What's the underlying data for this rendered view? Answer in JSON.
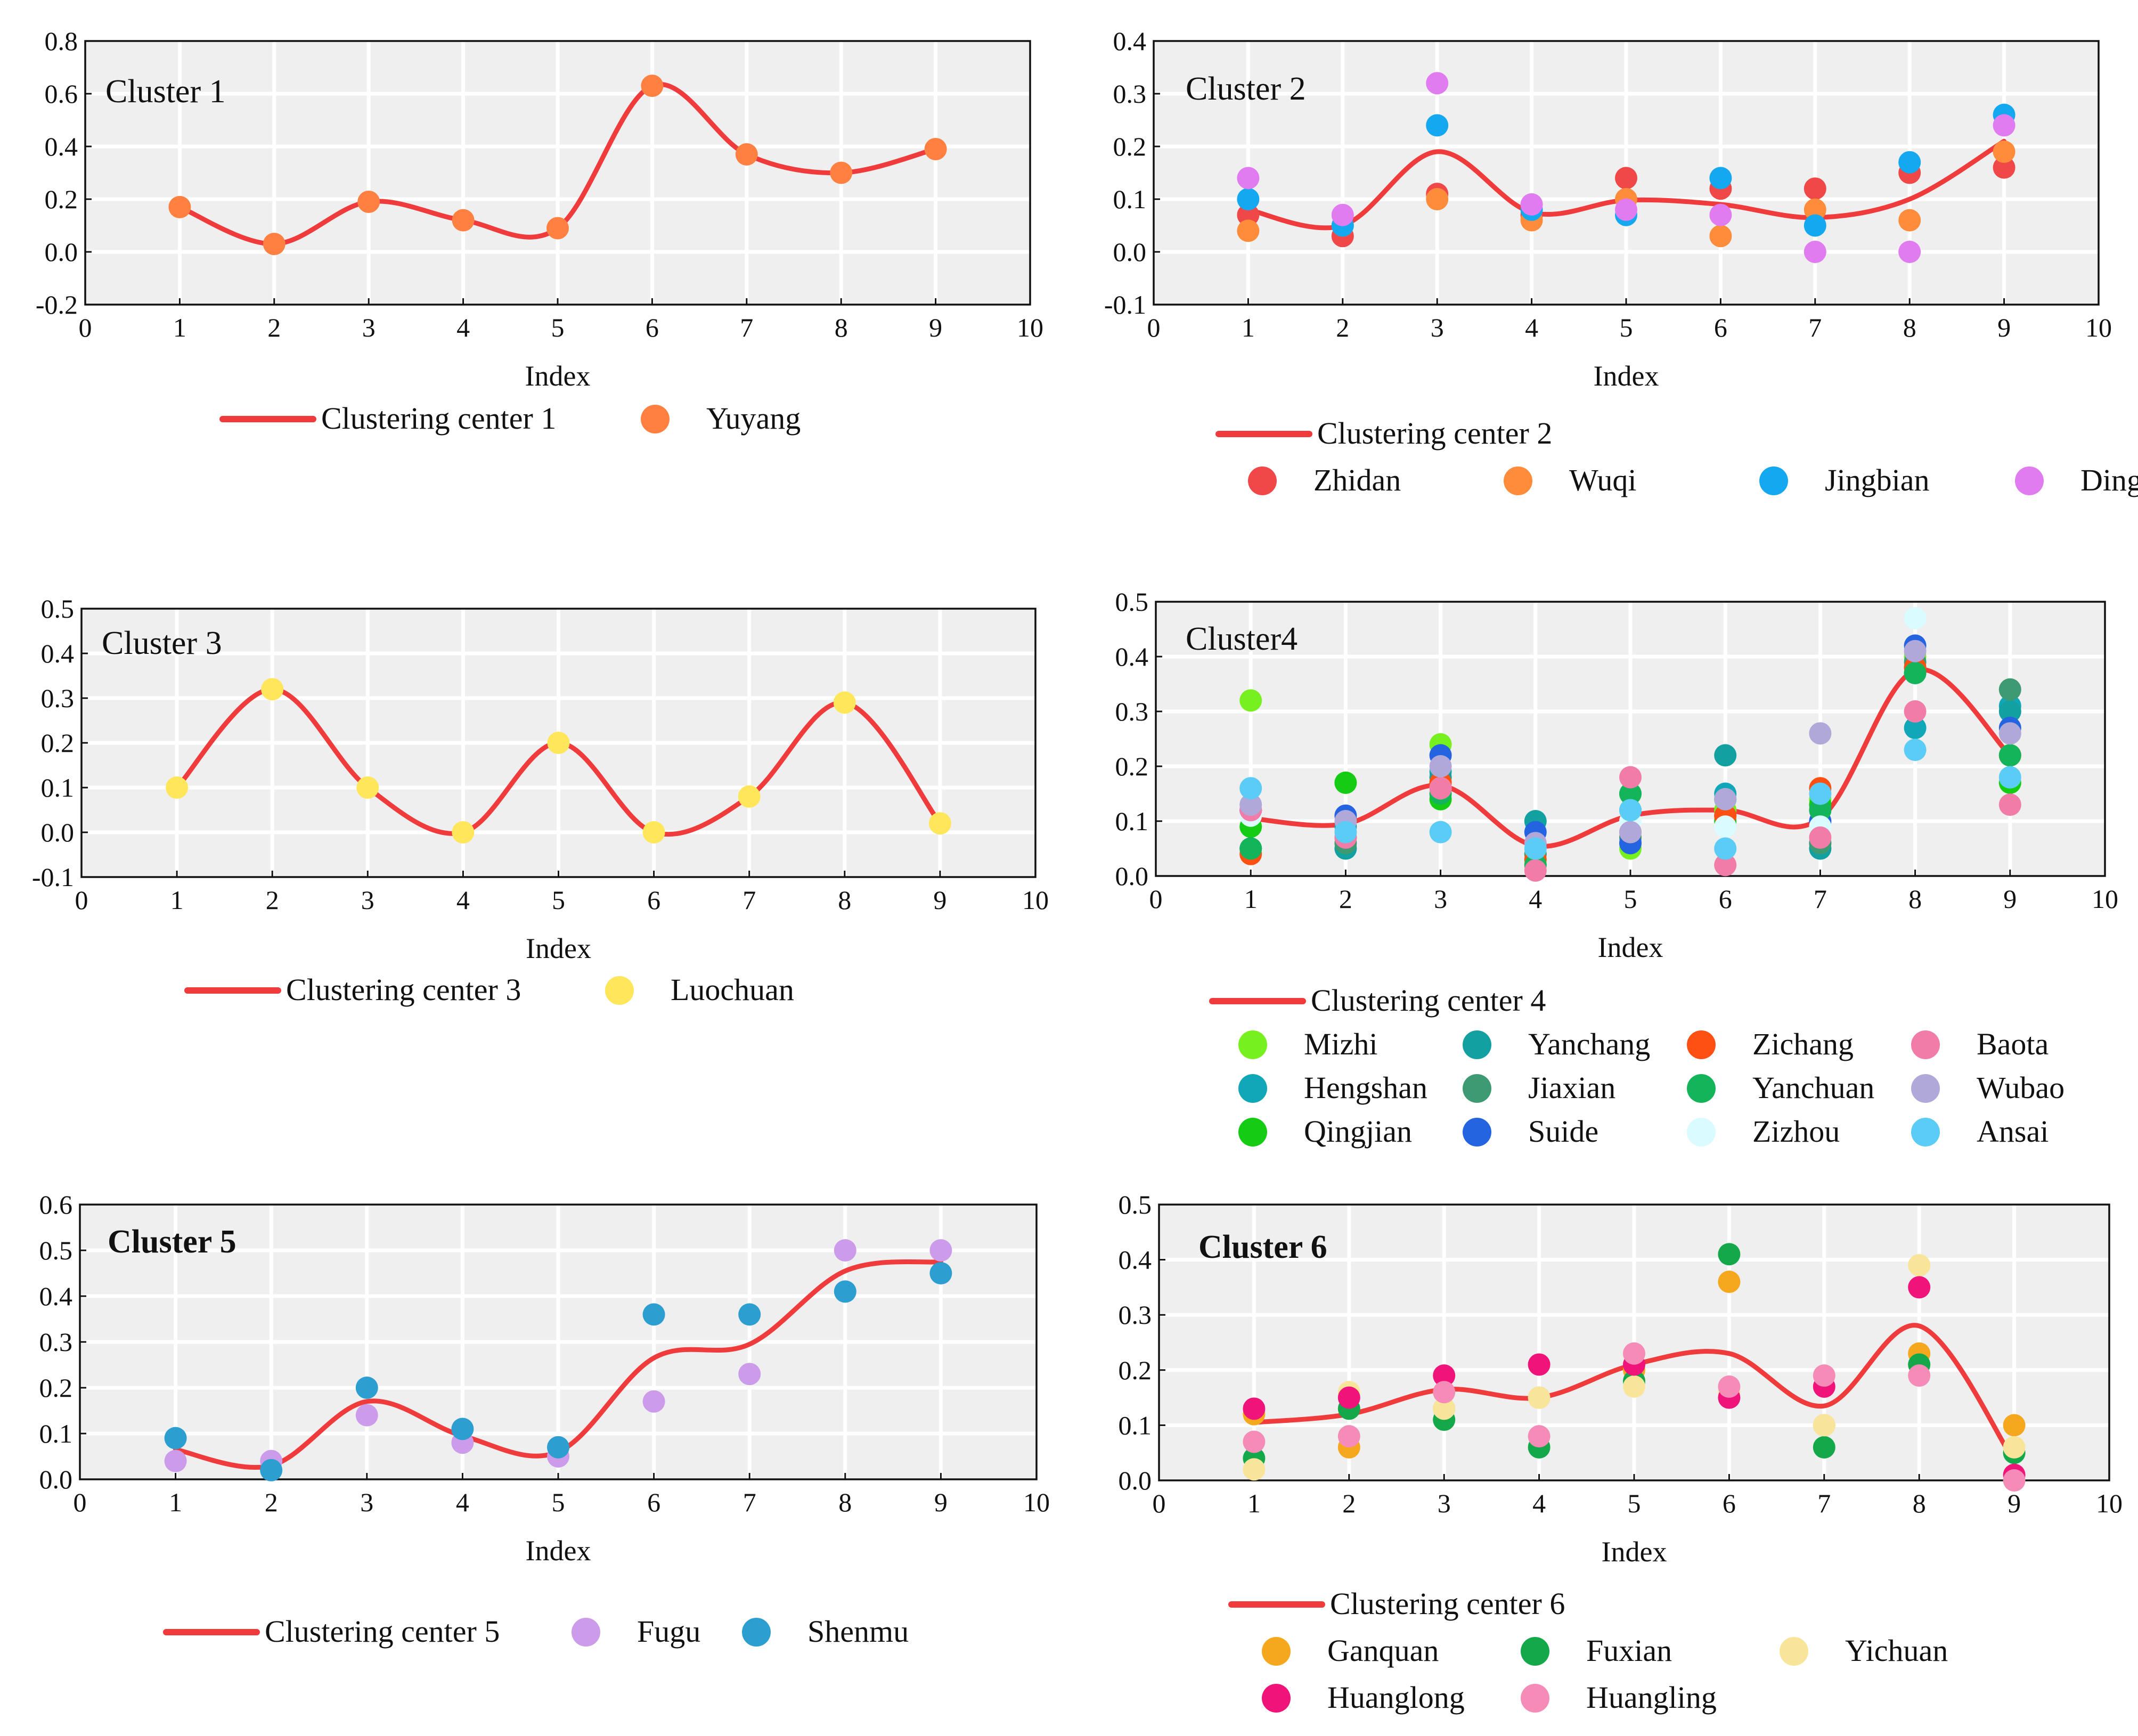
{
  "colors": {
    "center_line": "#EF3B3B",
    "plot_background": "#EFEFEF",
    "grid": "#FFFFFF",
    "axis": "#111111"
  },
  "chart_data": [
    {
      "type": "line",
      "title": "Cluster 1",
      "title_bold": false,
      "xlabel": "Index",
      "ylabel": "",
      "xlim": [
        0,
        10
      ],
      "ylim": [
        -0.2,
        0.8
      ],
      "xticks": [
        0,
        1,
        2,
        3,
        4,
        5,
        6,
        7,
        8,
        9,
        10
      ],
      "yticks": [
        "-0.2",
        "0.0",
        "0.2",
        "0.4",
        "0.6",
        "0.8"
      ],
      "center": {
        "name": "Clustering center 1",
        "x": [
          1,
          2,
          3,
          4,
          5,
          6,
          7,
          8,
          9
        ],
        "values": [
          0.17,
          0.03,
          0.19,
          0.12,
          0.09,
          0.63,
          0.37,
          0.3,
          0.39
        ]
      },
      "legend_columns": 2,
      "series": [
        {
          "name": "Yuyang",
          "color": "#FF8040",
          "values": [
            0.17,
            0.03,
            0.19,
            0.12,
            0.09,
            0.63,
            0.37,
            0.3,
            0.39
          ]
        }
      ]
    },
    {
      "type": "scatter",
      "title": "Cluster 2",
      "title_bold": false,
      "xlabel": "Index",
      "ylabel": "",
      "xlim": [
        0,
        10
      ],
      "ylim": [
        -0.1,
        0.4
      ],
      "xticks": [
        0,
        1,
        2,
        3,
        4,
        5,
        6,
        7,
        8,
        9,
        10
      ],
      "yticks": [
        "-0.1",
        "0.0",
        "0.1",
        "0.2",
        "0.3",
        "0.4"
      ],
      "center": {
        "name": "Clustering center 2",
        "x": [
          1,
          2,
          3,
          4,
          5,
          6,
          7,
          8,
          9
        ],
        "values": [
          0.08,
          0.05,
          0.19,
          0.075,
          0.098,
          0.09,
          0.065,
          0.1,
          0.21
        ]
      },
      "legend_columns": 4,
      "series": [
        {
          "name": "Zhidan",
          "color": "#F04848",
          "values": [
            0.07,
            0.03,
            0.11,
            0.07,
            0.14,
            0.12,
            0.12,
            0.15,
            0.16
          ]
        },
        {
          "name": "Wuqi",
          "color": "#FF8C3A",
          "values": [
            0.04,
            0.05,
            0.1,
            0.06,
            0.1,
            0.03,
            0.08,
            0.06,
            0.19
          ]
        },
        {
          "name": "Jingbian",
          "color": "#14A8F0",
          "values": [
            0.1,
            0.05,
            0.24,
            0.08,
            0.07,
            0.14,
            0.05,
            0.17,
            0.26
          ]
        },
        {
          "name": "Dingbian",
          "color": "#E07CF0",
          "values": [
            0.14,
            0.07,
            0.32,
            0.09,
            0.08,
            0.07,
            0.0,
            0.0,
            0.24
          ]
        }
      ]
    },
    {
      "type": "scatter",
      "title": "Cluster 3",
      "title_bold": false,
      "xlabel": "Index",
      "ylabel": "",
      "xlim": [
        0,
        10
      ],
      "ylim": [
        -0.1,
        0.5
      ],
      "xticks": [
        0,
        1,
        2,
        3,
        4,
        5,
        6,
        7,
        8,
        9,
        10
      ],
      "yticks": [
        "-0.1",
        "0.0",
        "0.1",
        "0.2",
        "0.3",
        "0.4",
        "0.5"
      ],
      "center": {
        "name": "Clustering center 3",
        "x": [
          1,
          2,
          3,
          4,
          5,
          6,
          7,
          8,
          9
        ],
        "values": [
          0.1,
          0.32,
          0.1,
          0.0,
          0.2,
          0.0,
          0.08,
          0.29,
          0.02
        ]
      },
      "legend_columns": 2,
      "series": [
        {
          "name": "Luochuan",
          "color": "#FFE65A",
          "values": [
            0.1,
            0.32,
            0.1,
            0.0,
            0.2,
            0.0,
            0.08,
            0.29,
            0.02
          ]
        }
      ]
    },
    {
      "type": "scatter",
      "title": "Cluster4",
      "title_bold": false,
      "xlabel": "Index",
      "ylabel": "",
      "xlim": [
        0,
        10
      ],
      "ylim": [
        0.0,
        0.5
      ],
      "xticks": [
        0,
        1,
        2,
        3,
        4,
        5,
        6,
        7,
        8,
        9,
        10
      ],
      "yticks": [
        "0.0",
        "0.1",
        "0.2",
        "0.3",
        "0.4",
        "0.5"
      ],
      "center": {
        "name": "Clustering center 4",
        "x": [
          1,
          2,
          3,
          4,
          5,
          6,
          7,
          8,
          9
        ],
        "values": [
          0.105,
          0.095,
          0.165,
          0.055,
          0.11,
          0.12,
          0.105,
          0.375,
          0.22
        ]
      },
      "legend_columns": 4,
      "series": [
        {
          "name": "Mizhi",
          "color": "#76F01E",
          "values": [
            0.32,
            0.17,
            0.24,
            0.03,
            0.05,
            0.12,
            0.14,
            0.4,
            0.22
          ]
        },
        {
          "name": "Hengshan",
          "color": "#10A8B8",
          "values": [
            0.12,
            0.09,
            0.19,
            0.04,
            0.12,
            0.15,
            0.06,
            0.27,
            0.31
          ]
        },
        {
          "name": "Qingjian",
          "color": "#14CC14",
          "values": [
            0.09,
            0.17,
            0.14,
            0.02,
            0.15,
            0.1,
            0.13,
            0.38,
            0.17
          ]
        },
        {
          "name": "Yanchang",
          "color": "#12A0A0",
          "values": [
            0.05,
            0.05,
            0.18,
            0.1,
            0.06,
            0.22,
            0.05,
            0.37,
            0.3
          ]
        },
        {
          "name": "Jiaxian",
          "color": "#3E9A72",
          "values": [
            0.05,
            0.06,
            0.17,
            0.04,
            0.07,
            0.14,
            0.06,
            0.39,
            0.34
          ]
        },
        {
          "name": "Suide",
          "color": "#2564E0",
          "values": [
            0.12,
            0.11,
            0.22,
            0.08,
            0.06,
            0.11,
            0.1,
            0.42,
            0.27
          ]
        },
        {
          "name": "Zichang",
          "color": "#FF5014",
          "values": [
            0.04,
            0.08,
            0.17,
            0.03,
            0.08,
            0.11,
            0.16,
            0.38,
            0.22
          ]
        },
        {
          "name": "Yanchuan",
          "color": "#14B45A",
          "values": [
            0.05,
            0.07,
            0.15,
            0.02,
            0.15,
            0.14,
            0.12,
            0.37,
            0.22
          ]
        },
        {
          "name": "Zizhou",
          "color": "#DAFBFF",
          "values": [
            0.11,
            0.08,
            0.16,
            0.05,
            0.1,
            0.09,
            0.09,
            0.47,
            0.18
          ]
        },
        {
          "name": "Baota",
          "color": "#F27CA8",
          "values": [
            0.12,
            0.07,
            0.16,
            0.01,
            0.18,
            0.02,
            0.07,
            0.3,
            0.13
          ]
        },
        {
          "name": "Wubao",
          "color": "#B0A8D8",
          "values": [
            0.13,
            0.1,
            0.2,
            0.06,
            0.08,
            0.14,
            0.26,
            0.41,
            0.26
          ]
        },
        {
          "name": "Ansai",
          "color": "#5ACCF5",
          "values": [
            0.16,
            0.08,
            0.08,
            0.05,
            0.12,
            0.05,
            0.15,
            0.23,
            0.18
          ]
        }
      ]
    },
    {
      "type": "scatter",
      "title": "Cluster 5",
      "title_bold": true,
      "xlabel": "Index",
      "ylabel": "",
      "xlim": [
        0,
        10
      ],
      "ylim": [
        0.0,
        0.6
      ],
      "xticks": [
        0,
        1,
        2,
        3,
        4,
        5,
        6,
        7,
        8,
        9,
        10
      ],
      "yticks": [
        "0.0",
        "0.1",
        "0.2",
        "0.3",
        "0.4",
        "0.5",
        "0.6"
      ],
      "center": {
        "name": "Clustering center 5",
        "x": [
          1,
          2,
          3,
          4,
          5,
          6,
          7,
          8,
          9
        ],
        "values": [
          0.065,
          0.03,
          0.17,
          0.095,
          0.06,
          0.265,
          0.295,
          0.455,
          0.475
        ]
      },
      "legend_columns": 3,
      "series": [
        {
          "name": "Fugu",
          "color": "#CC9CEA",
          "values": [
            0.04,
            0.04,
            0.14,
            0.08,
            0.05,
            0.17,
            0.23,
            0.5,
            0.5
          ]
        },
        {
          "name": "Shenmu",
          "color": "#2C9ED0",
          "values": [
            0.09,
            0.02,
            0.2,
            0.11,
            0.07,
            0.36,
            0.36,
            0.41,
            0.45
          ]
        }
      ]
    },
    {
      "type": "scatter",
      "title": "Cluster 6",
      "title_bold": true,
      "xlabel": "Index",
      "ylabel": "",
      "xlim": [
        0,
        10
      ],
      "ylim": [
        0.0,
        0.5
      ],
      "xticks": [
        0,
        1,
        2,
        3,
        4,
        5,
        6,
        7,
        8,
        9,
        10
      ],
      "yticks": [
        "0.0",
        "0.1",
        "0.2",
        "0.3",
        "0.4",
        "0.5"
      ],
      "center": {
        "name": "Clustering center 6",
        "x": [
          1,
          2,
          3,
          4,
          5,
          6,
          7,
          8,
          9
        ],
        "values": [
          0.105,
          0.12,
          0.165,
          0.15,
          0.21,
          0.23,
          0.135,
          0.28,
          0.035
        ]
      },
      "legend_columns": 3,
      "series": [
        {
          "name": "Ganquan",
          "color": "#F5A81E",
          "values": [
            0.12,
            0.06,
            0.13,
            0.15,
            0.2,
            0.36,
            0.1,
            0.23,
            0.1
          ]
        },
        {
          "name": "Fuxian",
          "color": "#14A84A",
          "values": [
            0.04,
            0.13,
            0.11,
            0.06,
            0.18,
            0.41,
            0.06,
            0.21,
            0.05
          ]
        },
        {
          "name": "Yichuan",
          "color": "#F8E59A",
          "values": [
            0.02,
            0.16,
            0.13,
            0.15,
            0.17,
            0.16,
            0.1,
            0.39,
            0.06
          ]
        },
        {
          "name": "Huanglong",
          "color": "#F0147A",
          "values": [
            0.13,
            0.15,
            0.19,
            0.21,
            0.21,
            0.15,
            0.17,
            0.35,
            0.01
          ]
        },
        {
          "name": "Huangling",
          "color": "#F58CB8",
          "values": [
            0.07,
            0.08,
            0.16,
            0.08,
            0.23,
            0.17,
            0.19,
            0.19,
            0.0
          ]
        }
      ]
    }
  ]
}
